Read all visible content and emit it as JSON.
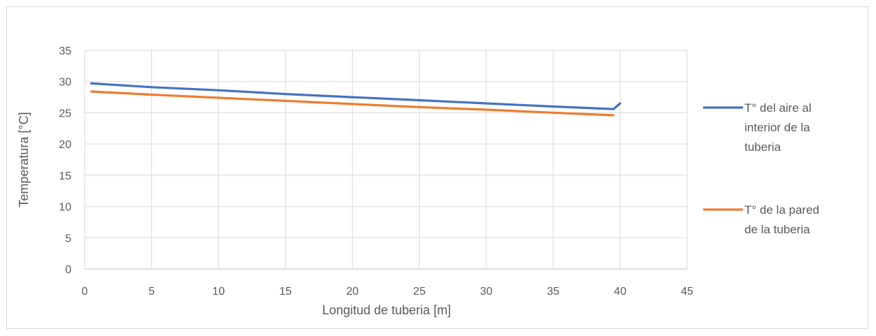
{
  "chart_data": {
    "type": "line",
    "title": "",
    "xlabel": "Longitud  de tuberia [m]",
    "ylabel": "Temperatura [°C]",
    "xlim": [
      0,
      45
    ],
    "ylim": [
      0,
      35
    ],
    "x_ticks": [
      "0",
      "5",
      "10",
      "15",
      "20",
      "25",
      "30",
      "35",
      "40",
      "45"
    ],
    "y_ticks": [
      "0",
      "5",
      "10",
      "15",
      "20",
      "25",
      "30",
      "35"
    ],
    "grid": true,
    "legend_position": "right",
    "series": [
      {
        "name": "T° del aire al interior de la tuberia",
        "legend_lines": [
          "T° del aire al",
          "interior de la",
          "tuberia"
        ],
        "color": "#4472C4",
        "x": [
          0.5,
          5,
          10,
          15,
          20,
          25,
          30,
          35,
          39.5,
          40
        ],
        "y": [
          29.7,
          29.1,
          28.6,
          28.0,
          27.5,
          27.0,
          26.5,
          26.0,
          25.6,
          26.5
        ]
      },
      {
        "name": "T° de la pared de la tuberia",
        "legend_lines": [
          "T° de la pared",
          "de la tuberia"
        ],
        "color": "#ED7D31",
        "x": [
          0.5,
          5,
          10,
          15,
          20,
          25,
          30,
          35,
          39.5
        ],
        "y": [
          28.4,
          27.9,
          27.4,
          26.9,
          26.4,
          25.9,
          25.5,
          25.0,
          24.6
        ]
      }
    ]
  }
}
